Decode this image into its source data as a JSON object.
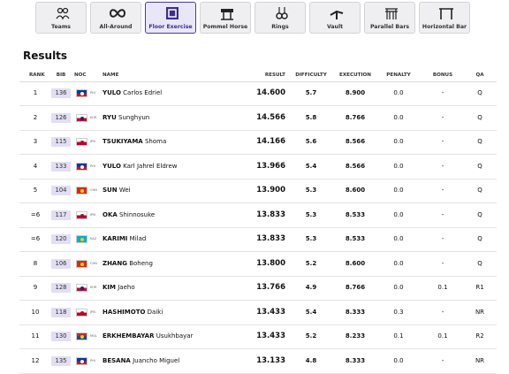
{
  "tabs": [
    "Teams",
    "All-Around",
    "Floor Exercise",
    "Pommel Horse",
    "Rings",
    "Vault",
    "Parallel Bars",
    "Horizontal Bar"
  ],
  "section_title": "Results",
  "table": {
    "columns": [
      "RANK",
      "BIB",
      "NOC",
      "NAME",
      "RESULT",
      "DIFFICULTY",
      "EXECUTION",
      "PENALTY",
      "BONUS",
      "QA"
    ],
    "rows": [
      {
        "rank": "1",
        "bib": "136",
        "noc": "PHI",
        "surname": "YULO",
        "given": "Carlos Edriel",
        "result": "14.600",
        "difficulty": "5.7",
        "execution": "8.900",
        "penalty": "0.0",
        "bonus": "-",
        "qa": "Q"
      },
      {
        "rank": "2",
        "bib": "126",
        "noc": "KOR",
        "surname": "RYU",
        "given": "Sunghyun",
        "result": "14.566",
        "difficulty": "5.8",
        "execution": "8.766",
        "penalty": "0.0",
        "bonus": "-",
        "qa": "Q"
      },
      {
        "rank": "3",
        "bib": "115",
        "noc": "JPN",
        "surname": "TSUKIYAMA",
        "given": "Shoma",
        "result": "14.166",
        "difficulty": "5.6",
        "execution": "8.566",
        "penalty": "0.0",
        "bonus": "-",
        "qa": "Q"
      },
      {
        "rank": "4",
        "bib": "133",
        "noc": "PHI",
        "surname": "YULO",
        "given": "Karl Jahrel Eldrew",
        "result": "13.966",
        "difficulty": "5.4",
        "execution": "8.566",
        "penalty": "0.0",
        "bonus": "-",
        "qa": "Q"
      },
      {
        "rank": "5",
        "bib": "104",
        "noc": "CHN",
        "surname": "SUN",
        "given": "Wei",
        "result": "13.900",
        "difficulty": "5.3",
        "execution": "8.600",
        "penalty": "0.0",
        "bonus": "-",
        "qa": "Q"
      },
      {
        "rank": "=6",
        "bib": "117",
        "noc": "JPN",
        "surname": "OKA",
        "given": "Shinnosuke",
        "result": "13.833",
        "difficulty": "5.3",
        "execution": "8.533",
        "penalty": "0.0",
        "bonus": "-",
        "qa": "Q"
      },
      {
        "rank": "=6",
        "bib": "120",
        "noc": "KAZ",
        "surname": "KARIMI",
        "given": "Milad",
        "result": "13.833",
        "difficulty": "5.3",
        "execution": "8.533",
        "penalty": "0.0",
        "bonus": "-",
        "qa": "Q"
      },
      {
        "rank": "8",
        "bib": "106",
        "noc": "CHN",
        "surname": "ZHANG",
        "given": "Boheng",
        "result": "13.800",
        "difficulty": "5.2",
        "execution": "8.600",
        "penalty": "0.0",
        "bonus": "-",
        "qa": "Q"
      },
      {
        "rank": "9",
        "bib": "128",
        "noc": "KOR",
        "surname": "KIM",
        "given": "Jaeho",
        "result": "13.766",
        "difficulty": "4.9",
        "execution": "8.766",
        "penalty": "0.0",
        "bonus": "0.1",
        "qa": "R1"
      },
      {
        "rank": "10",
        "bib": "118",
        "noc": "JPN",
        "surname": "HASHIMOTO",
        "given": "Daiki",
        "result": "13.433",
        "difficulty": "5.4",
        "execution": "8.333",
        "penalty": "0.3",
        "bonus": "-",
        "qa": "NR"
      },
      {
        "rank": "11",
        "bib": "130",
        "noc": "MGL",
        "surname": "ERKHEMBAYAR",
        "given": "Usukhbayar",
        "result": "13.433",
        "difficulty": "5.2",
        "execution": "8.233",
        "penalty": "0.1",
        "bonus": "0.1",
        "qa": "R2"
      },
      {
        "rank": "12",
        "bib": "135",
        "noc": "PHI",
        "surname": "BESANA",
        "given": "Juancho Miguel",
        "result": "13.133",
        "difficulty": "4.8",
        "execution": "8.333",
        "penalty": "0.0",
        "bonus": "-",
        "qa": "NR"
      }
    ]
  }
}
